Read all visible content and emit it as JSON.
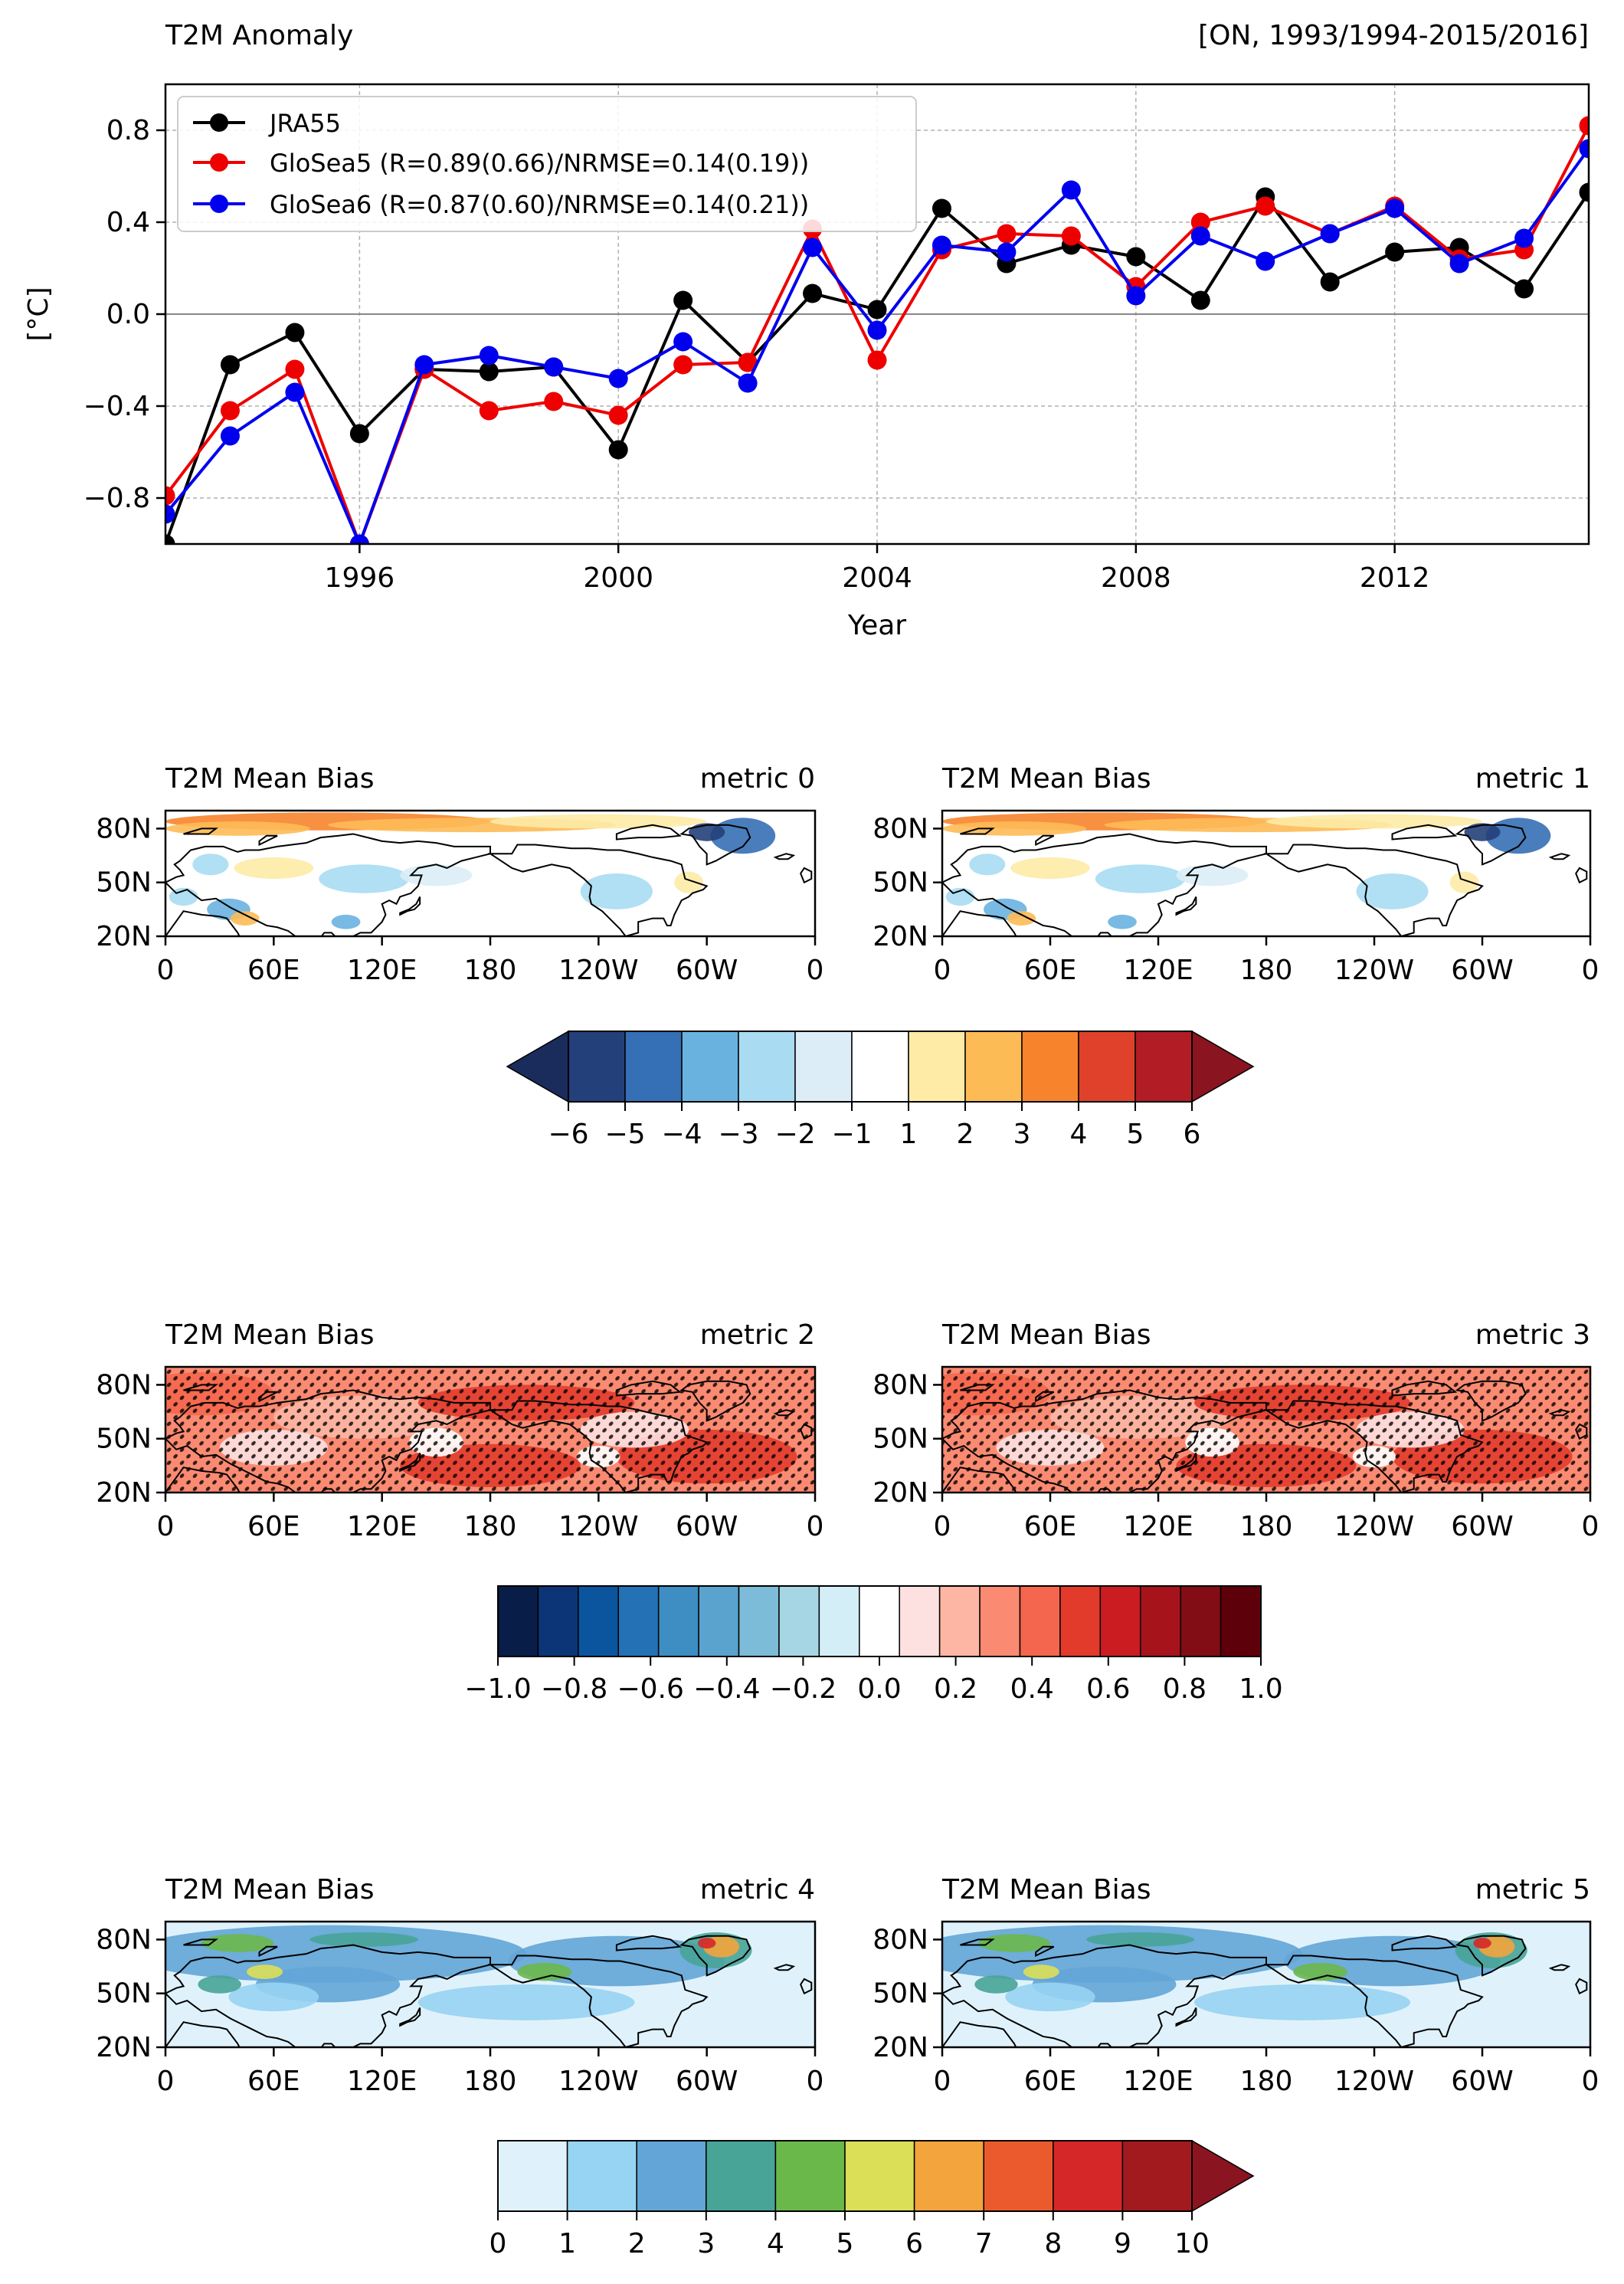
{
  "colors": {
    "jra55": "#000000",
    "glosea5": "#ee0000",
    "glosea6": "#0000ee",
    "land_outline": "#000000"
  },
  "chart_data": [
    {
      "type": "line",
      "title_left": "T2M Anomaly",
      "title_right": "[ON, 1993/1994-2015/2016]",
      "xlabel": "Year",
      "ylabel": "[°C]",
      "xlim": [
        1993,
        2015
      ],
      "ylim": [
        -1.0,
        1.0
      ],
      "xticks": [
        1996,
        2000,
        2004,
        2008,
        2012
      ],
      "yticks": [
        0.8,
        0.4,
        0.0,
        -0.4,
        -0.8
      ],
      "ytick_labels": [
        "0.8",
        "0.4",
        "0.0",
        "−0.4",
        "−0.8"
      ],
      "grid": true,
      "legend_position": "upper-left",
      "x": [
        1993,
        1994,
        1995,
        1996,
        1997,
        1998,
        1999,
        2000,
        2001,
        2002,
        2003,
        2004,
        2005,
        2006,
        2007,
        2008,
        2009,
        2010,
        2011,
        2012,
        2013,
        2014,
        2015
      ],
      "series": [
        {
          "name": "JRA55",
          "color_key": "jra55",
          "values": [
            -1.0,
            -0.22,
            -0.08,
            -0.52,
            -0.24,
            -0.25,
            -0.23,
            -0.59,
            0.06,
            -0.21,
            0.09,
            0.02,
            0.46,
            0.22,
            0.3,
            0.25,
            0.06,
            0.51,
            0.14,
            0.27,
            0.29,
            0.11,
            0.53
          ]
        },
        {
          "name": "GloSea5 (R=0.89(0.66)/NRMSE=0.14(0.19))",
          "color_key": "glosea5",
          "values": [
            -0.79,
            -0.42,
            -0.24,
            -1.0,
            -0.24,
            -0.42,
            -0.38,
            -0.44,
            -0.22,
            -0.21,
            0.37,
            -0.2,
            0.28,
            0.35,
            0.34,
            0.12,
            0.4,
            0.47,
            0.35,
            0.47,
            0.24,
            0.28,
            0.82
          ]
        },
        {
          "name": "GloSea6 (R=0.87(0.60)/NRMSE=0.14(0.21))",
          "color_key": "glosea6",
          "values": [
            -0.87,
            -0.53,
            -0.34,
            -1.0,
            -0.22,
            -0.18,
            -0.23,
            -0.28,
            -0.12,
            -0.3,
            0.29,
            -0.07,
            0.3,
            0.27,
            0.54,
            0.08,
            0.34,
            0.23,
            0.35,
            0.46,
            0.22,
            0.33,
            0.72
          ]
        }
      ]
    },
    {
      "type": "heatmap",
      "group": "bias",
      "title_left": "T2M Mean Bias",
      "title_right": "metric 0",
      "ytick_labels": [
        "80N",
        "50N",
        "20N"
      ],
      "xtick_labels": [
        "0",
        "60E",
        "120E",
        "180",
        "120W",
        "60W",
        "0"
      ]
    },
    {
      "type": "heatmap",
      "group": "bias",
      "title_left": "T2M Mean Bias",
      "title_right": "metric 1",
      "ytick_labels": [
        "80N",
        "50N",
        "20N"
      ],
      "xtick_labels": [
        "0",
        "60E",
        "120E",
        "180",
        "120W",
        "60W",
        "0"
      ]
    },
    {
      "type": "heatmap",
      "group": "corr",
      "title_left": "T2M Mean Bias",
      "title_right": "metric 2",
      "ytick_labels": [
        "80N",
        "50N",
        "20N"
      ],
      "xtick_labels": [
        "0",
        "60E",
        "120E",
        "180",
        "120W",
        "60W",
        "0"
      ]
    },
    {
      "type": "heatmap",
      "group": "corr",
      "title_left": "T2M Mean Bias",
      "title_right": "metric 3",
      "ytick_labels": [
        "80N",
        "50N",
        "20N"
      ],
      "xtick_labels": [
        "0",
        "60E",
        "120E",
        "180",
        "120W",
        "60W",
        "0"
      ]
    },
    {
      "type": "heatmap",
      "group": "spread",
      "title_left": "T2M Mean Bias",
      "title_right": "metric 4",
      "ytick_labels": [
        "80N",
        "50N",
        "20N"
      ],
      "xtick_labels": [
        "0",
        "60E",
        "120E",
        "180",
        "120W",
        "60W",
        "0"
      ]
    },
    {
      "type": "heatmap",
      "group": "spread",
      "title_left": "T2M Mean Bias",
      "title_right": "metric 5",
      "ytick_labels": [
        "80N",
        "50N",
        "20N"
      ],
      "xtick_labels": [
        "0",
        "60E",
        "120E",
        "180",
        "120W",
        "60W",
        "0"
      ]
    }
  ],
  "colorbars": {
    "bias": {
      "colors": [
        "#23407a",
        "#356fb5",
        "#69b2e0",
        "#a9dcf2",
        "#dcedf7",
        "#ffffff",
        "#fdeba6",
        "#fdbb56",
        "#f7842c",
        "#e0412a",
        "#b11c25"
      ],
      "extend": "both",
      "under_color": "#1a2c5c",
      "over_color": "#8a1420",
      "tick_labels": [
        "−6",
        "−5",
        "−4",
        "−3",
        "−2",
        "−1",
        "1",
        "2",
        "3",
        "4",
        "5",
        "6"
      ]
    },
    "corr": {
      "colors": [
        "#081d47",
        "#0b3577",
        "#0b559e",
        "#2471b5",
        "#3e8ec3",
        "#5aa3cf",
        "#7dbcd8",
        "#a6d6e3",
        "#d4eef7",
        "#ffffff",
        "#fde0e0",
        "#fcb6a3",
        "#fb8a72",
        "#f4664d",
        "#e23b2c",
        "#cb1c22",
        "#a6131b",
        "#820d14",
        "#5e0009"
      ],
      "extend": "neither",
      "tick_labels": [
        "−1.0",
        "−0.8",
        "−0.6",
        "−0.4",
        "−0.2",
        "0.0",
        "0.2",
        "0.4",
        "0.6",
        "0.8",
        "1.0"
      ]
    },
    "spread": {
      "colors": [
        "#dff2fb",
        "#97d3f2",
        "#63a5d6",
        "#47a497",
        "#6ab84a",
        "#dadf57",
        "#f3a43c",
        "#eb5a2d",
        "#d62728",
        "#a31a1e"
      ],
      "extend": "max",
      "over_color": "#8a1420",
      "tick_labels": [
        "0",
        "1",
        "2",
        "3",
        "4",
        "5",
        "6",
        "7",
        "8",
        "9",
        "10"
      ]
    }
  }
}
